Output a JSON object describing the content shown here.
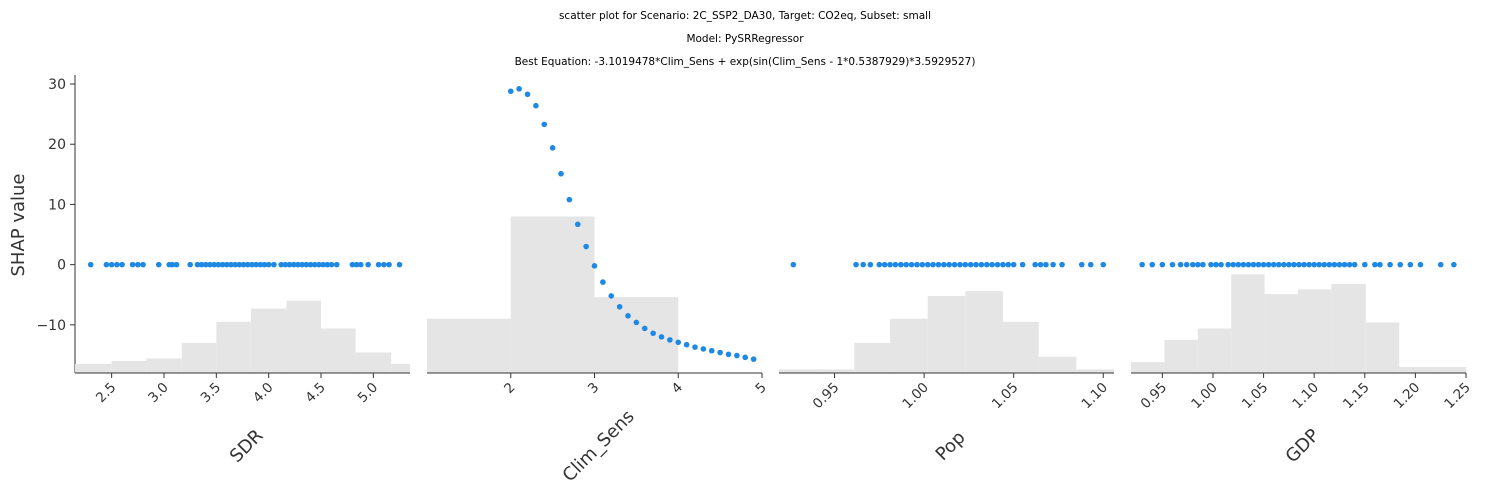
{
  "titles": {
    "line1": "scatter plot for Scenario: 2C_SSP2_DA30, Target: CO2eq, Subset: small",
    "line2": "Model: PySRRegressor",
    "line3": "Best Equation: -3.1019478*Clim_Sens + exp(sin(Clim_Sens - 1*0.5387929)*3.5929527)"
  },
  "colors": {
    "points": "#1e88e5",
    "hist": "#e5e5e5",
    "axis": "#333333"
  },
  "chart_data": {
    "type": "scatter",
    "ylabel": "SHAP value",
    "ylim": [
      -18,
      31.5
    ],
    "yticks": [
      30,
      20,
      10,
      0,
      -10
    ],
    "ytick_labels": [
      "30",
      "20",
      "10",
      "0",
      "−10"
    ],
    "panels": [
      {
        "feature": "SDR",
        "xlabel": "SDR",
        "xlim": [
          2.15,
          5.35
        ],
        "xticks": [
          2.5,
          3.0,
          3.5,
          4.0,
          4.5,
          5.0
        ],
        "xtick_labels": [
          "2.5",
          "3.0",
          "3.5",
          "4.0",
          "4.5",
          "5.0"
        ],
        "xtick_rotation": -45,
        "hist": {
          "edges": [
            2.15,
            2.5,
            2.83,
            3.17,
            3.5,
            3.83,
            4.17,
            4.5,
            4.83,
            5.17,
            5.35
          ],
          "relative_heights": [
            0.15,
            0.2,
            0.24,
            0.5,
            0.85,
            1.07,
            1.2,
            0.74,
            0.34,
            0.15
          ]
        },
        "points": {
          "x": [
            2.3,
            2.45,
            2.5,
            2.55,
            2.6,
            2.7,
            2.75,
            2.8,
            2.95,
            3.05,
            3.08,
            3.12,
            3.25,
            3.32,
            3.36,
            3.4,
            3.44,
            3.48,
            3.52,
            3.56,
            3.6,
            3.64,
            3.68,
            3.72,
            3.76,
            3.8,
            3.84,
            3.88,
            3.92,
            3.96,
            4.0,
            4.05,
            4.12,
            4.16,
            4.2,
            4.24,
            4.28,
            4.32,
            4.36,
            4.4,
            4.44,
            4.48,
            4.52,
            4.56,
            4.6,
            4.65,
            4.8,
            4.84,
            4.88,
            4.95,
            5.05,
            5.1,
            5.15,
            5.25
          ],
          "y": 0
        }
      },
      {
        "feature": "Clim_Sens",
        "xlabel": "Clim_Sens",
        "xlim": [
          1.0,
          5.0
        ],
        "xticks": [
          2,
          3,
          4,
          5
        ],
        "xtick_labels": [
          "2",
          "3",
          "4",
          "5"
        ],
        "xtick_rotation": -45,
        "hist": {
          "edges": [
            1.0,
            2.0,
            3.0,
            4.0,
            5.0
          ],
          "relative_heights": [
            0.9,
            2.6,
            1.26,
            0.0
          ]
        },
        "points": {
          "x": [
            2.0,
            2.1,
            2.2,
            2.3,
            2.4,
            2.5,
            2.6,
            2.7,
            2.8,
            2.9,
            3.0,
            3.1,
            3.2,
            3.3,
            3.4,
            3.5,
            3.6,
            3.7,
            3.8,
            3.9,
            4.0,
            4.1,
            4.2,
            4.3,
            4.4,
            4.5,
            4.6,
            4.7,
            4.8,
            4.9
          ],
          "y": [
            28.8,
            29.2,
            28.3,
            26.4,
            23.3,
            19.4,
            15.1,
            10.8,
            6.7,
            3.0,
            -0.2,
            -2.9,
            -5.2,
            -7.0,
            -8.5,
            -9.6,
            -10.6,
            -11.4,
            -12.0,
            -12.5,
            -12.9,
            -13.3,
            -13.7,
            -14.0,
            -14.3,
            -14.6,
            -14.9,
            -15.1,
            -15.4,
            -15.7
          ]
        }
      },
      {
        "feature": "Pop",
        "xlabel": "Pop",
        "xlim": [
          0.919,
          1.106
        ],
        "xticks": [
          0.95,
          1.0,
          1.05,
          1.1
        ],
        "xtick_labels": [
          "0.95",
          "1.00",
          "1.05",
          "1.10"
        ],
        "xtick_rotation": -45,
        "hist": {
          "edges": [
            0.919,
            0.94,
            0.961,
            0.981,
            1.002,
            1.023,
            1.044,
            1.064,
            1.085,
            1.106
          ],
          "relative_heights": [
            0.06,
            0.06,
            0.5,
            0.9,
            1.28,
            1.36,
            0.85,
            0.27,
            0.06,
            0.1
          ]
        },
        "points": {
          "x": [
            0.927,
            0.962,
            0.966,
            0.97,
            0.975,
            0.978,
            0.981,
            0.984,
            0.987,
            0.99,
            0.993,
            0.996,
            0.999,
            1.002,
            1.005,
            1.008,
            1.011,
            1.014,
            1.017,
            1.02,
            1.023,
            1.026,
            1.029,
            1.032,
            1.035,
            1.038,
            1.041,
            1.044,
            1.047,
            1.05,
            1.055,
            1.062,
            1.065,
            1.068,
            1.072,
            1.077,
            1.088,
            1.093,
            1.1
          ],
          "y": 0
        }
      },
      {
        "feature": "GDP",
        "xlabel": "GDP",
        "xlim": [
          0.919,
          1.25
        ],
        "xticks": [
          0.95,
          1.0,
          1.05,
          1.1,
          1.15,
          1.2,
          1.25
        ],
        "xtick_labels": [
          "0.95",
          "1.00",
          "1.05",
          "1.10",
          "1.15",
          "1.20",
          "1.25"
        ],
        "xtick_rotation": -45,
        "hist": {
          "edges": [
            0.919,
            0.952,
            0.985,
            1.018,
            1.051,
            1.084,
            1.117,
            1.151,
            1.184,
            1.217,
            1.25
          ],
          "relative_heights": [
            0.18,
            0.55,
            0.74,
            1.64,
            1.31,
            1.39,
            1.48,
            0.84,
            0.1,
            0.1
          ]
        },
        "points": {
          "x": [
            0.93,
            0.94,
            0.95,
            0.96,
            0.968,
            0.974,
            0.98,
            0.985,
            0.99,
            0.998,
            1.003,
            1.008,
            1.015,
            1.02,
            1.025,
            1.03,
            1.035,
            1.04,
            1.045,
            1.05,
            1.055,
            1.06,
            1.065,
            1.07,
            1.075,
            1.08,
            1.085,
            1.09,
            1.095,
            1.1,
            1.105,
            1.11,
            1.115,
            1.12,
            1.125,
            1.13,
            1.135,
            1.14,
            1.15,
            1.16,
            1.165,
            1.175,
            1.185,
            1.195,
            1.205,
            1.225,
            1.238
          ],
          "y": 0
        }
      }
    ]
  }
}
